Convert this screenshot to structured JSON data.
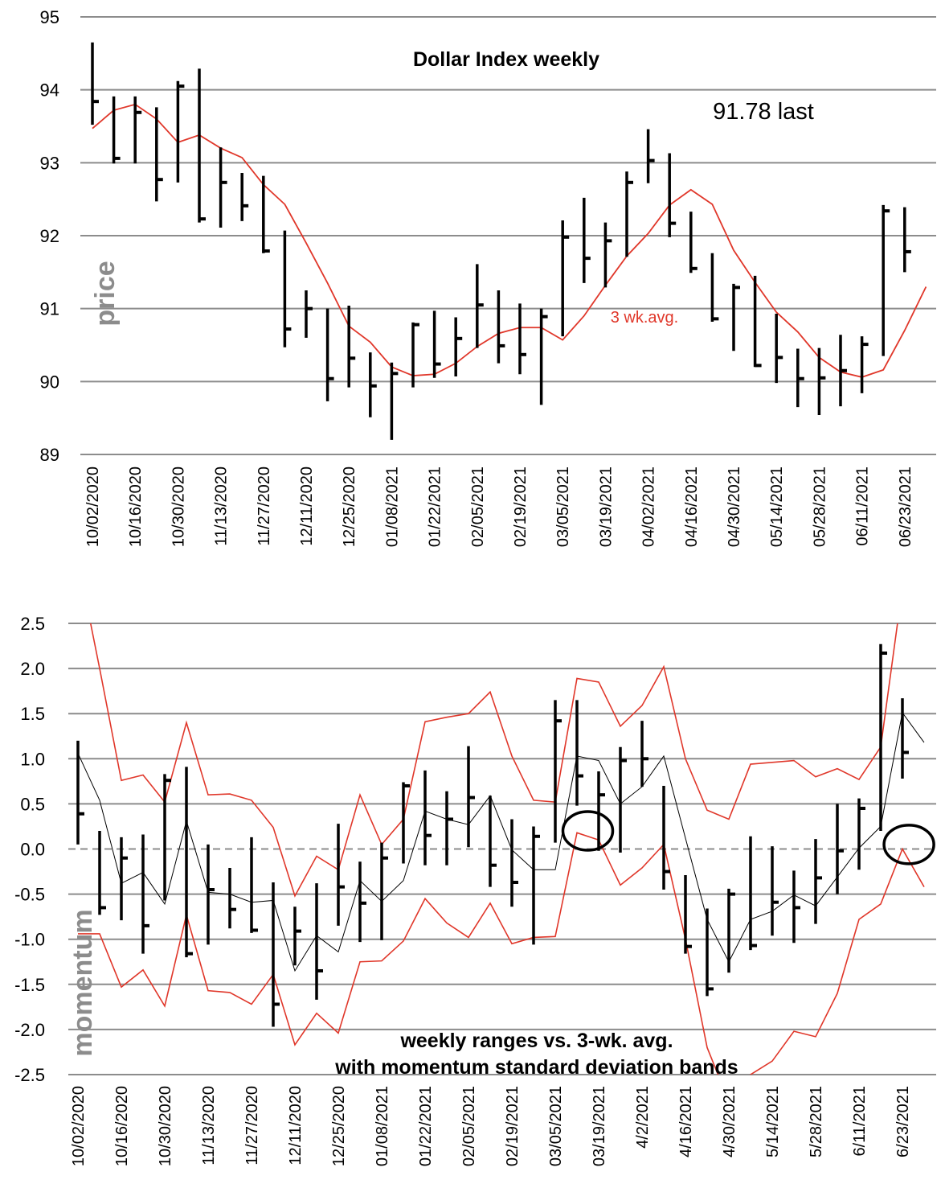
{
  "chart_data": [
    {
      "type": "bar",
      "subtype": "ohlc-range",
      "title": "Dollar Index weekly",
      "annotation_last": "91.78 last",
      "ylabel": "price",
      "avg_label": "3 wk.avg.",
      "ylim": [
        89,
        95
      ],
      "yticks": [
        "89",
        "90",
        "91",
        "92",
        "93",
        "94",
        "95"
      ],
      "xtick_labels": [
        "10/02/2020",
        "10/16/2020",
        "10/30/2020",
        "11/13/2020",
        "11/27/2020",
        "12/11/2020",
        "12/25/2020",
        "01/08/2021",
        "01/22/2021",
        "02/05/2021",
        "02/19/2021",
        "03/05/2021",
        "03/19/2021",
        "04/02/2021",
        "04/16/2021",
        "04/30/2021",
        "05/14/2021",
        "05/28/2021",
        "06/11/2021",
        "06/23/2021"
      ],
      "high": [
        94.65,
        93.91,
        93.91,
        93.76,
        94.12,
        94.29,
        93.21,
        92.86,
        92.82,
        92.07,
        91.25,
        91.0,
        91.04,
        90.4,
        90.26,
        90.81,
        90.97,
        90.88,
        91.61,
        91.25,
        91.07,
        91.0,
        92.21,
        92.52,
        92.18,
        92.88,
        93.46,
        93.13,
        92.33,
        91.76,
        91.34,
        91.45,
        90.93,
        90.45,
        90.46,
        90.64,
        90.62,
        92.42,
        92.39
      ],
      "low": [
        93.52,
        92.99,
        92.99,
        92.47,
        92.73,
        92.18,
        92.11,
        92.2,
        91.76,
        90.47,
        90.6,
        89.73,
        89.92,
        89.51,
        89.2,
        89.92,
        90.05,
        90.07,
        90.46,
        90.25,
        90.1,
        89.68,
        90.62,
        91.35,
        91.29,
        91.71,
        92.72,
        91.98,
        91.49,
        90.82,
        90.42,
        90.2,
        89.98,
        89.65,
        89.54,
        89.66,
        89.84,
        90.35,
        91.5
      ],
      "close": [
        93.84,
        93.06,
        93.69,
        92.77,
        94.05,
        92.23,
        92.73,
        92.41,
        91.79,
        90.72,
        91.0,
        90.04,
        90.32,
        89.94,
        90.11,
        90.78,
        90.24,
        90.59,
        91.05,
        90.49,
        90.37,
        90.89,
        91.98,
        91.69,
        91.93,
        92.73,
        93.03,
        92.17,
        91.55,
        90.86,
        91.29,
        90.22,
        90.33,
        90.04,
        90.05,
        90.15,
        90.51,
        92.34,
        91.78
      ],
      "avg3": [
        93.47,
        93.72,
        93.8,
        93.6,
        93.28,
        93.38,
        93.2,
        93.07,
        92.7,
        92.43,
        91.9,
        91.35,
        90.76,
        90.54,
        90.2,
        90.08,
        90.1,
        90.25,
        90.48,
        90.66,
        90.74,
        90.74,
        90.57,
        90.9,
        91.32,
        91.72,
        92.03,
        92.42,
        92.63,
        92.43,
        91.8,
        91.36,
        90.95,
        90.68,
        90.33,
        90.13,
        90.06,
        90.16,
        90.7,
        91.3
      ],
      "colors": {
        "bars": "#000000",
        "avg": "#e0372a",
        "grid": "#8c8c8c",
        "ylabel": "#8c8c8c"
      }
    },
    {
      "type": "bar",
      "subtype": "ohlc-range",
      "title_lines": [
        "weekly ranges vs. 3-wk. avg.",
        "with momentum standard deviation bands"
      ],
      "ylabel": "momentum",
      "ylim": [
        -2.5,
        2.5
      ],
      "yticks": [
        "-2.5",
        "-2.0",
        "-1.5",
        "-1.0",
        "-0.5",
        "0.0",
        "0.5",
        "1.0",
        "1.5",
        "2.0",
        "2.5"
      ],
      "xtick_labels": [
        "10/02/2020",
        "10/16/2020",
        "10/30/2020",
        "11/13/2020",
        "11/27/2020",
        "12/11/2020",
        "12/25/2020",
        "01/08/2021",
        "01/22/2021",
        "02/05/2021",
        "02/19/2021",
        "03/05/2021",
        "03/19/2021",
        "4/2/2021",
        "4/16/2021",
        "4/30/2021",
        "5/14/2021",
        "5/28/2021",
        "6/11/2021",
        "6/23/2021"
      ],
      "high": [
        1.2,
        0.2,
        0.13,
        0.16,
        0.83,
        0.91,
        0.05,
        -0.21,
        0.13,
        -0.37,
        -0.64,
        -0.38,
        0.28,
        -0.14,
        0.07,
        0.74,
        0.87,
        0.64,
        1.14,
        0.59,
        0.33,
        0.25,
        1.65,
        1.65,
        0.86,
        1.13,
        1.42,
        0.7,
        -0.29,
        -0.66,
        -0.44,
        0.14,
        0.03,
        -0.24,
        0.11,
        0.5,
        0.56,
        2.27,
        1.67
      ],
      "low": [
        0.05,
        -0.73,
        -0.79,
        -1.16,
        -0.57,
        -1.2,
        -1.06,
        -0.88,
        -0.93,
        -1.97,
        -1.29,
        -1.67,
        -0.85,
        -1.03,
        -1.01,
        -0.16,
        -0.18,
        -0.18,
        0.02,
        -0.42,
        -0.64,
        -1.06,
        0.07,
        0.48,
        -0.02,
        -0.04,
        0.69,
        -0.45,
        -1.16,
        -1.63,
        -1.37,
        -1.12,
        -0.96,
        -1.04,
        -0.83,
        -0.5,
        -0.23,
        0.2,
        0.78
      ],
      "close": [
        0.39,
        -0.65,
        -0.1,
        -0.85,
        0.76,
        -1.16,
        -0.45,
        -0.67,
        -0.9,
        -1.72,
        -0.91,
        -1.35,
        -0.42,
        -0.6,
        -0.1,
        0.7,
        0.15,
        0.33,
        0.57,
        -0.18,
        -0.37,
        0.14,
        1.42,
        0.81,
        0.6,
        0.98,
        1.0,
        -0.25,
        -1.08,
        -1.55,
        -0.5,
        -1.07,
        -0.59,
        -0.65,
        -0.32,
        -0.02,
        0.45,
        2.17,
        1.07
      ],
      "avg3": [
        1.06,
        0.54,
        -0.38,
        -0.26,
        -0.61,
        0.31,
        -0.48,
        -0.5,
        -0.59,
        -0.57,
        -1.35,
        -0.96,
        -1.14,
        -0.35,
        -0.58,
        -0.35,
        0.42,
        0.33,
        0.27,
        0.59,
        -0.01,
        -0.23,
        -0.23,
        1.03,
        0.98,
        0.5,
        0.69,
        1.03,
        0.12,
        -0.78,
        -1.25,
        -0.78,
        -0.69,
        -0.51,
        -0.63,
        -0.31,
        0.01,
        0.25,
        1.51,
        1.18
      ],
      "upper_band": [
        3.2,
        2.0,
        0.76,
        0.82,
        0.52,
        1.4,
        0.6,
        0.61,
        0.54,
        0.24,
        -0.52,
        -0.08,
        -0.23,
        0.6,
        0.05,
        0.33,
        1.41,
        1.46,
        1.5,
        1.74,
        1.03,
        0.54,
        0.52,
        1.89,
        1.85,
        1.36,
        1.59,
        2.02,
        1.0,
        0.43,
        0.33,
        0.94,
        0.96,
        0.98,
        0.8,
        0.89,
        0.77,
        1.13,
        2.9,
        3.2
      ],
      "lower_band": [
        -0.94,
        -0.94,
        -1.53,
        -1.34,
        -1.74,
        -0.73,
        -1.57,
        -1.59,
        -1.72,
        -1.39,
        -2.17,
        -1.82,
        -2.04,
        -1.25,
        -1.24,
        -1.02,
        -0.55,
        -0.82,
        -0.98,
        -0.6,
        -1.05,
        -0.98,
        -0.97,
        0.18,
        0.1,
        -0.4,
        -0.21,
        0.05,
        -1.0,
        -2.2,
        -2.8,
        -2.5,
        -2.35,
        -2.02,
        -2.08,
        -1.6,
        -0.78,
        -0.61,
        0.0,
        -0.42
      ],
      "circled_points": [
        {
          "week_index": 23.5,
          "value": 0.2
        },
        {
          "week_index": 38.3,
          "value": 0.05
        }
      ],
      "zero_line": "dashed",
      "colors": {
        "bars": "#000000",
        "avg": "#000000",
        "bands": "#e0372a",
        "grid": "#8c8c8c",
        "ylabel": "#8c8c8c"
      }
    }
  ]
}
